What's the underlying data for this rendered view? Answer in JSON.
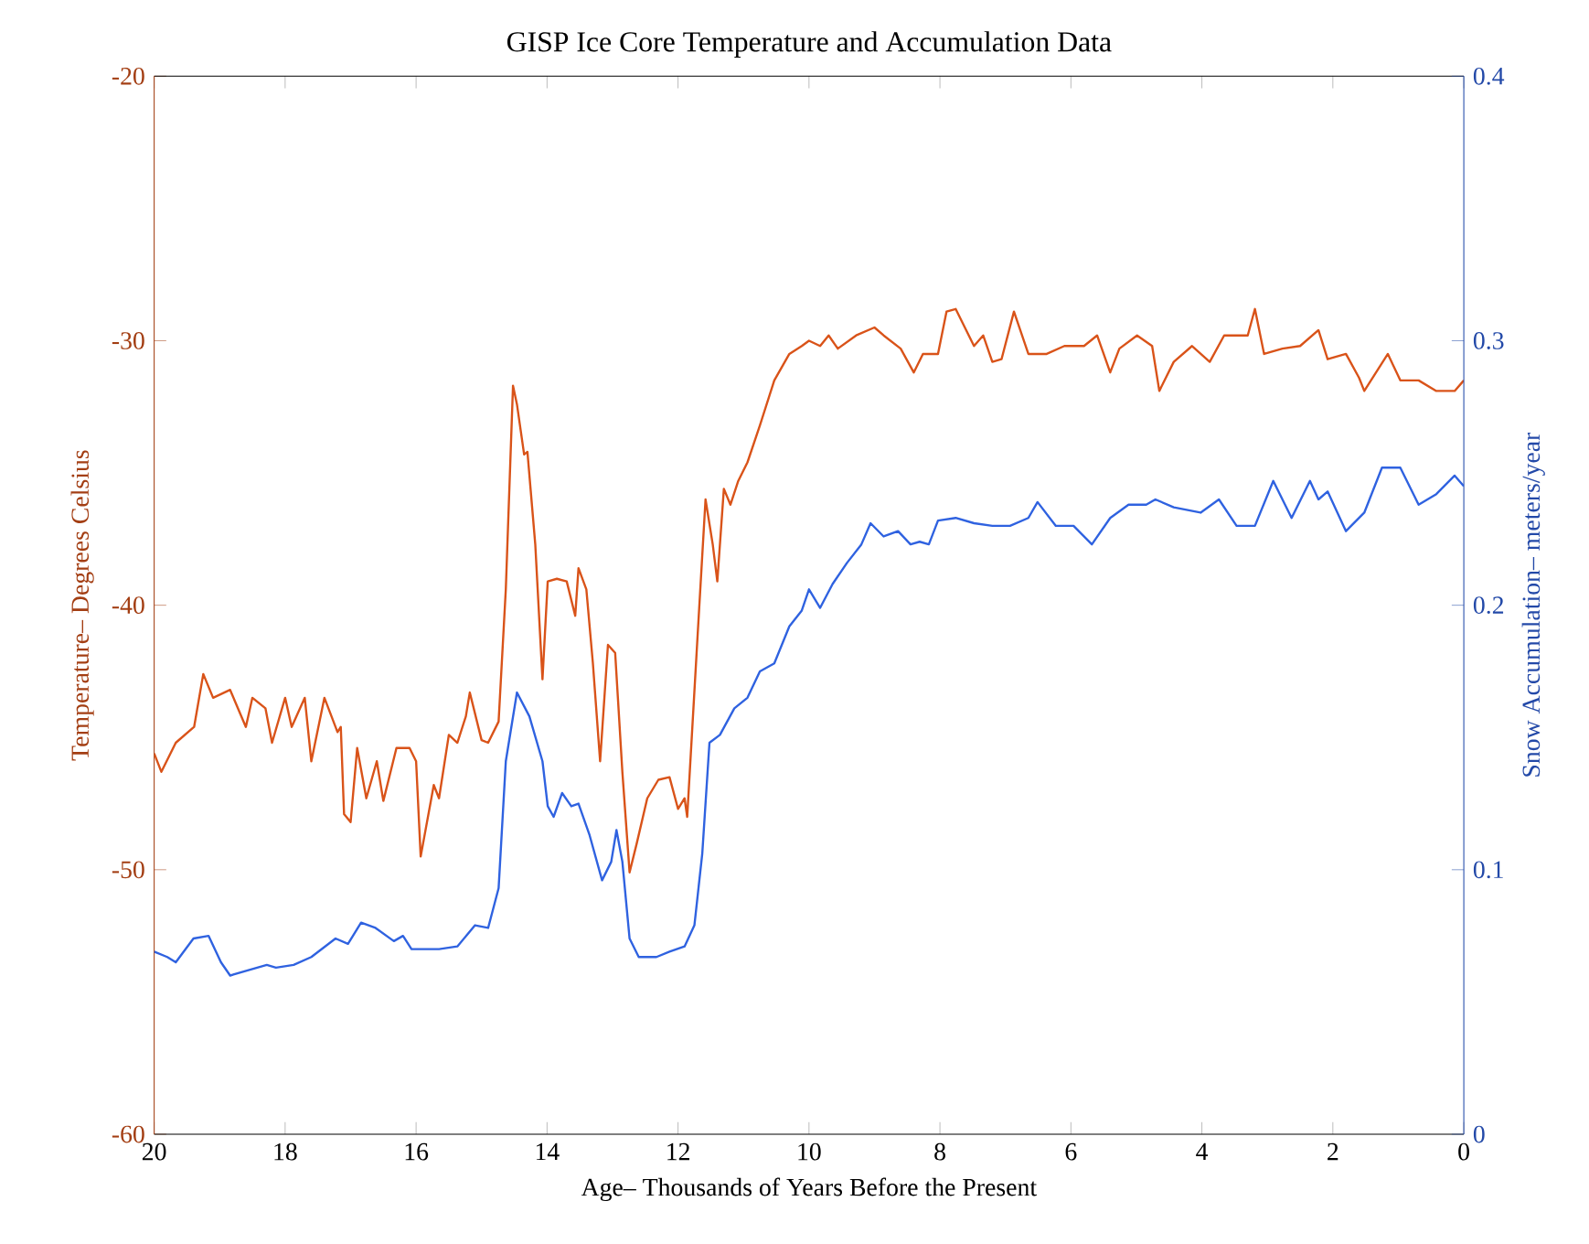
{
  "chart_data": {
    "type": "line",
    "title": "GISP Ice Core Temperature and Accumulation Data",
    "xlabel": "Age– Thousands of Years Before the Present",
    "ylabel": "Temperature– Degrees Celsius",
    "y2label": "Snow Accumulation– meters/year",
    "xlim": [
      20,
      0
    ],
    "xticks": [
      20,
      18,
      16,
      14,
      12,
      10,
      8,
      6,
      4,
      2,
      0
    ],
    "ylim": [
      -60,
      -20
    ],
    "yticks": [
      -60,
      -50,
      -40,
      -30,
      -20
    ],
    "y2lim": [
      0,
      0.4
    ],
    "y2ticks": [
      0,
      0.1,
      0.2,
      0.3,
      0.4
    ],
    "series": [
      {
        "color": "#d95319",
        "axis": "y",
        "x": [
          20,
          19.89,
          19.67,
          19.39,
          19.25,
          19.1,
          18.84,
          18.6,
          18.5,
          18.3,
          18.2,
          18.0,
          17.9,
          17.7,
          17.6,
          17.4,
          17.2,
          17.15,
          17.1,
          17.0,
          16.9,
          16.76,
          16.6,
          16.5,
          16.3,
          16.1,
          16.0,
          15.93,
          15.73,
          15.65,
          15.5,
          15.37,
          15.24,
          15.18,
          15.0,
          14.9,
          14.74,
          14.63,
          14.52,
          14.46,
          14.35,
          14.3,
          14.18,
          14.07,
          13.99,
          13.85,
          13.7,
          13.57,
          13.52,
          13.4,
          13.3,
          13.19,
          13.07,
          12.96,
          12.85,
          12.74,
          12.63,
          12.47,
          12.3,
          12.13,
          12.0,
          11.9,
          11.86,
          11.7,
          11.58,
          11.47,
          11.4,
          11.3,
          11.2,
          11.08,
          10.94,
          10.75,
          10.53,
          10.3,
          10.11,
          10.0,
          9.83,
          9.7,
          9.56,
          9.28,
          9.0,
          8.86,
          8.6,
          8.4,
          8.26,
          8.03,
          7.9,
          7.76,
          7.62,
          7.48,
          7.34,
          7.2,
          7.06,
          6.87,
          6.65,
          6.37,
          6.1,
          5.8,
          5.6,
          5.4,
          5.26,
          4.99,
          4.76,
          4.65,
          4.43,
          4.15,
          3.88,
          3.66,
          3.3,
          3.19,
          3.05,
          2.77,
          2.5,
          2.22,
          2.08,
          1.8,
          1.6,
          1.52,
          1.16,
          0.97,
          0.69,
          0.42,
          0.14,
          0
        ],
        "values": [
          -45.6,
          -46.3,
          -45.2,
          -44.6,
          -42.6,
          -43.5,
          -43.2,
          -44.6,
          -43.5,
          -43.9,
          -45.2,
          -43.5,
          -44.6,
          -43.5,
          -45.9,
          -43.5,
          -44.8,
          -44.6,
          -47.9,
          -48.2,
          -45.4,
          -47.3,
          -45.9,
          -47.4,
          -45.4,
          -45.4,
          -45.9,
          -49.5,
          -46.8,
          -47.3,
          -44.9,
          -45.2,
          -44.2,
          -43.3,
          -45.1,
          -45.2,
          -44.4,
          -39.4,
          -31.7,
          -32.4,
          -34.3,
          -34.2,
          -37.7,
          -42.8,
          -39.1,
          -39.0,
          -39.1,
          -40.4,
          -38.6,
          -39.4,
          -42.2,
          -45.9,
          -41.5,
          -41.8,
          -46.3,
          -50.1,
          -49.0,
          -47.3,
          -46.6,
          -46.5,
          -47.7,
          -47.3,
          -48.0,
          -41.1,
          -36.0,
          -37.7,
          -39.1,
          -35.6,
          -36.2,
          -35.3,
          -34.6,
          -33.2,
          -31.5,
          -30.5,
          -30.2,
          -30.0,
          -30.2,
          -29.8,
          -30.3,
          -29.8,
          -29.5,
          -29.8,
          -30.3,
          -31.2,
          -30.5,
          -30.5,
          -28.9,
          -28.8,
          -29.5,
          -30.2,
          -29.8,
          -30.8,
          -30.7,
          -28.9,
          -30.5,
          -30.5,
          -30.2,
          -30.2,
          -29.8,
          -31.2,
          -30.3,
          -29.8,
          -30.2,
          -31.9,
          -30.8,
          -30.2,
          -30.8,
          -29.8,
          -29.8,
          -28.8,
          -30.5,
          -30.3,
          -30.2,
          -29.6,
          -30.7,
          -30.5,
          -31.4,
          -31.9,
          -30.5,
          -31.5,
          -31.5,
          -31.9,
          -31.9,
          -31.5
        ]
      },
      {
        "color": "#2f62e0",
        "axis": "y2",
        "x": [
          20,
          19.8,
          19.67,
          19.4,
          19.17,
          18.98,
          18.84,
          18.56,
          18.28,
          18.14,
          17.87,
          17.6,
          17.23,
          17.04,
          16.84,
          16.62,
          16.34,
          16.2,
          16.07,
          15.65,
          15.37,
          15.1,
          14.9,
          14.74,
          14.63,
          14.46,
          14.27,
          14.07,
          13.99,
          13.9,
          13.77,
          13.63,
          13.52,
          13.35,
          13.16,
          13.02,
          12.94,
          12.85,
          12.74,
          12.6,
          12.33,
          12.13,
          11.9,
          11.75,
          11.63,
          11.52,
          11.36,
          11.14,
          10.94,
          10.75,
          10.53,
          10.3,
          10.11,
          10.0,
          9.83,
          9.64,
          9.42,
          9.2,
          9.06,
          8.86,
          8.64,
          8.45,
          8.31,
          8.17,
          8.03,
          7.76,
          7.48,
          7.2,
          6.93,
          6.65,
          6.51,
          6.23,
          5.96,
          5.68,
          5.4,
          5.12,
          4.85,
          4.71,
          4.43,
          4.02,
          3.74,
          3.47,
          3.19,
          2.91,
          2.63,
          2.35,
          2.22,
          2.08,
          1.8,
          1.52,
          1.25,
          0.97,
          0.69,
          0.42,
          0.14,
          0
        ],
        "values": [
          0.069,
          0.067,
          0.065,
          0.074,
          0.075,
          0.065,
          0.06,
          0.062,
          0.064,
          0.063,
          0.064,
          0.067,
          0.074,
          0.072,
          0.08,
          0.078,
          0.073,
          0.075,
          0.07,
          0.07,
          0.071,
          0.079,
          0.078,
          0.093,
          0.141,
          0.167,
          0.158,
          0.141,
          0.124,
          0.12,
          0.129,
          0.124,
          0.125,
          0.113,
          0.096,
          0.103,
          0.115,
          0.103,
          0.074,
          0.067,
          0.067,
          0.069,
          0.071,
          0.079,
          0.106,
          0.148,
          0.151,
          0.161,
          0.165,
          0.175,
          0.178,
          0.192,
          0.198,
          0.206,
          0.199,
          0.208,
          0.216,
          0.223,
          0.231,
          0.226,
          0.228,
          0.223,
          0.224,
          0.223,
          0.232,
          0.233,
          0.231,
          0.23,
          0.23,
          0.233,
          0.239,
          0.23,
          0.23,
          0.223,
          0.233,
          0.238,
          0.238,
          0.24,
          0.237,
          0.235,
          0.24,
          0.23,
          0.23,
          0.247,
          0.233,
          0.247,
          0.24,
          0.243,
          0.228,
          0.235,
          0.252,
          0.252,
          0.238,
          0.242,
          0.249,
          0.245
        ]
      }
    ]
  }
}
